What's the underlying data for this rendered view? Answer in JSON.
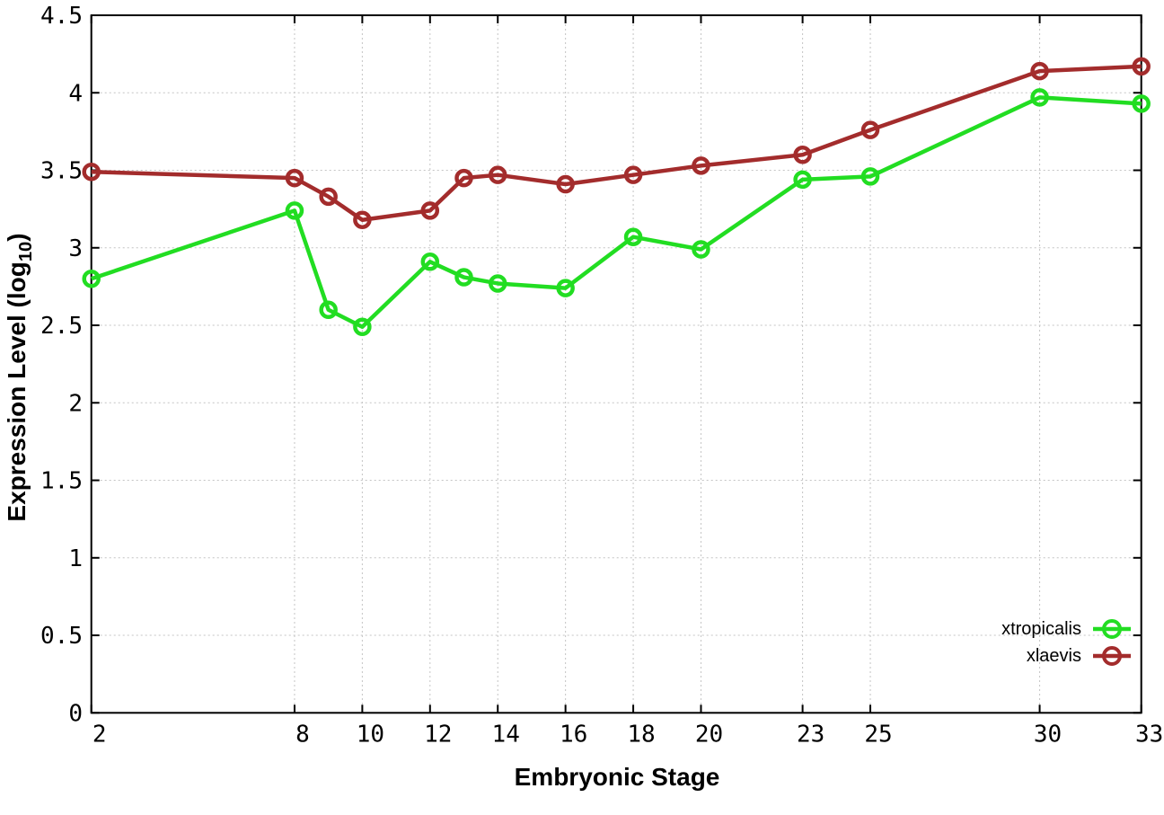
{
  "chart_data": {
    "type": "line",
    "title": "",
    "xlabel": "Embryonic Stage",
    "ylabel_prefix": "Expression Level (log",
    "ylabel_sub": "10",
    "ylabel_suffix": ")",
    "xlim": [
      2,
      33
    ],
    "ylim": [
      0,
      4.5
    ],
    "grid": true,
    "legend_position": "bottom-right",
    "x_ticks": [
      2,
      8,
      10,
      12,
      14,
      16,
      18,
      20,
      23,
      25,
      30,
      33
    ],
    "x_tick_labels": [
      "2",
      "8",
      "10",
      "12",
      "14",
      "16",
      "18",
      "20",
      "23",
      "25",
      "30",
      "33"
    ],
    "y_ticks": [
      0,
      0.5,
      1,
      1.5,
      2,
      2.5,
      3,
      3.5,
      4,
      4.5
    ],
    "y_tick_labels": [
      "0",
      "0.5",
      "1",
      "1.5",
      "2",
      "2.5",
      "3",
      "3.5",
      "4",
      "4.5"
    ],
    "x": [
      2,
      8,
      9,
      10,
      12,
      13,
      14,
      16,
      18,
      20,
      23,
      25,
      30,
      33
    ],
    "series": [
      {
        "name": "xtropicalis",
        "color": "#22dd22",
        "marker": "open-circle",
        "values": [
          2.8,
          3.24,
          2.6,
          2.49,
          2.91,
          2.81,
          2.77,
          2.74,
          3.07,
          2.99,
          3.44,
          3.46,
          3.97,
          3.93
        ]
      },
      {
        "name": "xlaevis",
        "color": "#a32c2c",
        "marker": "open-circle",
        "values": [
          3.49,
          3.45,
          3.33,
          3.18,
          3.24,
          3.45,
          3.47,
          3.41,
          3.47,
          3.53,
          3.6,
          3.76,
          4.14,
          4.17
        ]
      }
    ]
  }
}
